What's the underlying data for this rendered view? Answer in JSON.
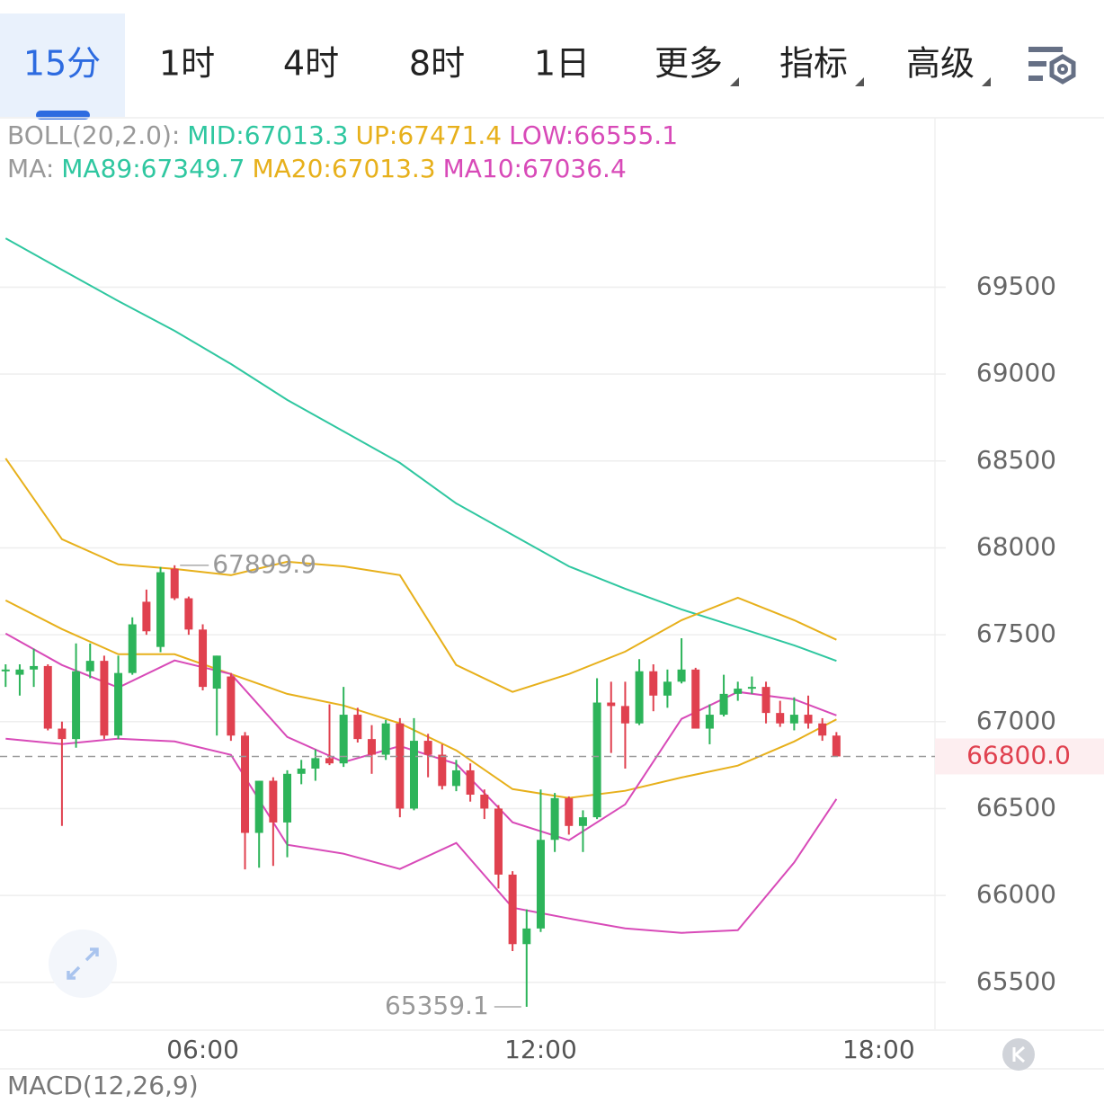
{
  "tabs": [
    "15分",
    "1时",
    "4时",
    "8时",
    "1日",
    "更多",
    "指标",
    "高级"
  ],
  "chart_data": {
    "type": "candlestick",
    "legend": {
      "boll": {
        "label": "BOLL(20,2.0):",
        "items": [
          {
            "text": "MID:67013.3",
            "color": "#2fc7a0"
          },
          {
            "text": "UP:67471.4",
            "color": "#e7b01b"
          },
          {
            "text": "LOW:66555.1",
            "color": "#d84ab8"
          }
        ]
      },
      "ma": {
        "label": "MA:",
        "items": [
          {
            "text": "MA89:67349.7",
            "color": "#2fc7a0"
          },
          {
            "text": "MA20:67013.3",
            "color": "#e7b01b"
          },
          {
            "text": "MA10:67036.4",
            "color": "#d84ab8"
          }
        ]
      }
    },
    "up_color": "#2db45a",
    "down_color": "#e0414f",
    "candles": {
      "x": [
        2.5,
        2.75,
        3,
        3.25,
        3.5,
        3.75,
        4,
        4.25,
        4.5,
        4.75,
        5,
        5.25,
        5.5,
        5.75,
        6,
        6.25,
        6.5,
        6.75,
        7,
        7.25,
        7.5,
        7.75,
        8,
        8.25,
        8.5,
        8.75,
        9,
        9.25,
        9.5,
        9.75,
        10,
        10.25,
        10.5,
        10.75,
        11,
        11.25,
        11.5,
        11.75,
        12,
        12.25,
        12.5,
        12.75,
        13,
        13.25,
        13.5,
        13.75,
        14,
        14.25,
        14.5,
        14.75,
        15,
        15.25,
        15.5,
        15.75,
        16,
        16.25,
        16.5,
        16.75,
        17,
        17.25
      ],
      "open": [
        67290,
        67270,
        67300,
        67320,
        66960,
        66900,
        67290,
        67350,
        66920,
        67280,
        67690,
        67430,
        67880,
        67710,
        67530,
        67190,
        67260,
        66920,
        66360,
        66660,
        66420,
        66700,
        66730,
        66790,
        66760,
        67040,
        66900,
        66810,
        66990,
        66500,
        66890,
        66810,
        66630,
        66720,
        66580,
        66500,
        66120,
        65720,
        65810,
        66320,
        66560,
        66400,
        66450,
        67110,
        67090,
        66990,
        67290,
        67150,
        67230,
        67300,
        66960,
        67040,
        67160,
        67190,
        67200,
        67050,
        66990,
        67040,
        66990,
        66920
      ],
      "high": [
        67330,
        67330,
        67420,
        67330,
        67000,
        67450,
        67450,
        67380,
        67380,
        67600,
        67760,
        67890,
        67899.9,
        67720,
        67560,
        67380,
        67280,
        66940,
        66660,
        66680,
        66720,
        66780,
        66840,
        67100,
        67200,
        67080,
        66980,
        67010,
        67020,
        67020,
        66930,
        66870,
        66780,
        66760,
        66610,
        66520,
        66140,
        65920,
        66610,
        66590,
        66570,
        66490,
        67250,
        67230,
        67230,
        67360,
        67330,
        67300,
        67480,
        67310,
        67100,
        67270,
        67230,
        67260,
        67230,
        67120,
        67140,
        67150,
        67020,
        66940
      ],
      "low": [
        67200,
        67150,
        67200,
        66950,
        66400,
        66850,
        67250,
        66900,
        66900,
        67270,
        67500,
        67400,
        67700,
        67500,
        67180,
        66920,
        66890,
        66150,
        66160,
        66170,
        66220,
        66640,
        66660,
        66750,
        66740,
        66880,
        66700,
        66780,
        66450,
        66490,
        66680,
        66610,
        66600,
        66540,
        66440,
        66040,
        65680,
        65359.1,
        65790,
        66250,
        66350,
        66250,
        66440,
        66820,
        66730,
        66980,
        67060,
        67080,
        67220,
        66960,
        66870,
        67030,
        67120,
        67160,
        66990,
        66970,
        66950,
        66960,
        66890,
        66800
      ],
      "close": [
        67300,
        67300,
        67320,
        66960,
        66900,
        67290,
        67350,
        66920,
        67280,
        67560,
        67520,
        67860,
        67710,
        67530,
        67200,
        67380,
        66920,
        66360,
        66660,
        66420,
        66700,
        66730,
        66790,
        66760,
        67040,
        66900,
        66810,
        66990,
        66500,
        66890,
        66810,
        66630,
        66720,
        66580,
        66500,
        66120,
        65720,
        65810,
        66320,
        66560,
        66400,
        66450,
        67110,
        67090,
        66990,
        67290,
        67150,
        67230,
        67300,
        66960,
        67040,
        67160,
        67190,
        67200,
        67050,
        66990,
        67040,
        66990,
        66920,
        66800
      ]
    },
    "series": [
      {
        "color": "#2fc7a0",
        "x": [
          2.5,
          3.5,
          4.5,
          5.5,
          6.5,
          7.5,
          8.5,
          9.5,
          10.5,
          11.5,
          12.5,
          13.5,
          14.5,
          15.5,
          16.5,
          17.25
        ],
        "values": [
          69781,
          69600,
          69420,
          69249,
          69058,
          68851,
          68670,
          68489,
          68256,
          68075,
          67894,
          67765,
          67646,
          67543,
          67439,
          67349.7
        ]
      },
      {
        "color": "#e7b01b",
        "x": [
          2.5,
          3.5,
          4.5,
          5.5,
          6.5,
          7.5,
          8.5,
          9.5,
          10.5,
          11.5,
          12.5,
          13.5,
          14.5,
          15.5,
          16.5,
          17.25
        ],
        "values": [
          68515,
          68050,
          67905,
          67879,
          67843,
          67920,
          67894,
          67843,
          67326,
          67171,
          67274,
          67403,
          67584,
          67713,
          67584,
          67471.4
        ]
      },
      {
        "color": "#e7b01b",
        "x": [
          2.5,
          3.5,
          4.5,
          5.5,
          6.5,
          7.5,
          8.5,
          9.5,
          10.5,
          11.5,
          12.5,
          13.5,
          14.5,
          15.5,
          16.5,
          17.25
        ],
        "values": [
          67698,
          67533,
          67388,
          67388,
          67274,
          67160,
          67093,
          66990,
          66835,
          66612,
          66561,
          66602,
          66679,
          66747,
          66886,
          67013.3
        ]
      },
      {
        "color": "#d84ab8",
        "x": [
          2.5,
          3.5,
          4.5,
          5.5,
          6.5,
          7.5,
          8.5,
          9.5,
          10.5,
          11.5,
          12.5,
          13.5,
          14.5,
          15.5,
          16.5,
          17.25
        ],
        "values": [
          66902,
          66871,
          66902,
          66886,
          66809,
          66292,
          66240,
          66152,
          66302,
          65930,
          65868,
          65811,
          65785,
          65800,
          66190,
          66555.1
        ]
      },
      {
        "color": "#d84ab8",
        "x": [
          2.5,
          3.5,
          4.5,
          5.5,
          6.5,
          7.5,
          8.5,
          9.5,
          10.5,
          11.5,
          12.5,
          13.5,
          14.5,
          15.5,
          16.5,
          17.25
        ],
        "values": [
          67507,
          67326,
          67196,
          67352,
          67274,
          66912,
          66767,
          66860,
          66757,
          66421,
          66318,
          66524,
          67016,
          67171,
          67129,
          67036.4
        ]
      }
    ],
    "last_price": {
      "value": 66800,
      "label": "66800.0",
      "color": "#e0414f"
    },
    "ylim": [
      65230,
      70480
    ],
    "yticks": [
      65500,
      66000,
      66500,
      67000,
      67500,
      68000,
      68500,
      69000,
      69500
    ],
    "xlim": [
      2.4,
      19.0
    ],
    "xticks": [
      {
        "value": 6,
        "label": "06:00"
      },
      {
        "value": 12,
        "label": "12:00"
      },
      {
        "value": 18,
        "label": "18:00"
      }
    ],
    "grid": true,
    "indicator": "MACD(12,26,9)"
  }
}
